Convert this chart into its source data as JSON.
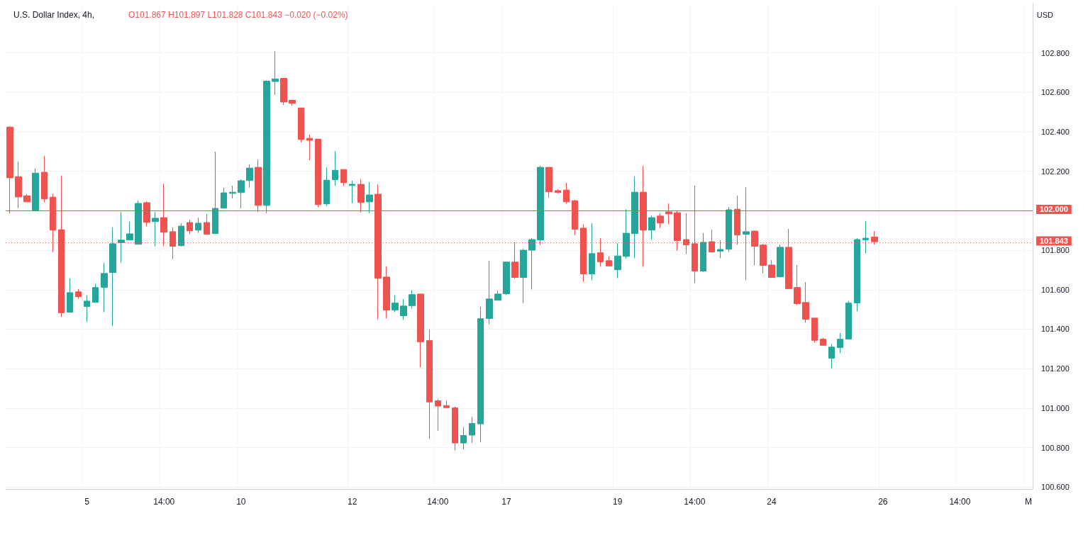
{
  "chart_data": {
    "type": "candlestick",
    "title": "U.S. Dollar Index, 4h,",
    "subtitle": "O101.867 H101.897 L101.828 C101.843 −0.020 (−0.02%)",
    "ylabel": "USD",
    "categories": [
      null,
      null,
      null,
      null,
      null,
      null,
      null,
      null,
      null,
      "5",
      null,
      null,
      null,
      null,
      null,
      null,
      null,
      null,
      "14:00",
      null,
      null,
      null,
      null,
      null,
      null,
      null,
      null,
      "10",
      null,
      null,
      null,
      null,
      null,
      null,
      null,
      null,
      null,
      null,
      null,
      null,
      "12",
      null,
      null,
      null,
      null,
      null,
      null,
      null,
      null,
      null,
      "14:00",
      null,
      null,
      null,
      null,
      null,
      null,
      null,
      "17",
      null,
      null,
      null,
      null,
      null,
      null,
      null,
      null,
      null,
      null,
      null,
      null,
      "19",
      null,
      null,
      null,
      null,
      null,
      null,
      null,
      null,
      "14:00",
      null,
      null,
      null,
      null,
      null,
      null,
      null,
      null,
      "24",
      null,
      null,
      null,
      null,
      null,
      null,
      null,
      null,
      null,
      null,
      null,
      null,
      "26",
      null,
      null,
      null,
      null,
      null,
      null,
      null,
      null,
      "14:00",
      null,
      null,
      null,
      null,
      null,
      null,
      null,
      "M"
    ],
    "ohlc": [
      [
        102.424,
        102.427,
        101.986,
        102.167
      ],
      [
        102.173,
        102.249,
        102.013,
        102.07
      ],
      [
        102.076,
        102.084,
        102.045,
        102.045
      ],
      [
        102.001,
        102.213,
        102.001,
        102.191
      ],
      [
        102.195,
        102.277,
        102.042,
        102.06
      ],
      [
        102.069,
        102.087,
        101.791,
        101.902
      ],
      [
        101.904,
        102.177,
        101.461,
        101.483
      ],
      [
        101.486,
        101.657,
        101.483,
        101.585
      ],
      [
        101.589,
        101.603,
        101.554,
        101.565
      ],
      [
        101.515,
        101.571,
        101.436,
        101.542
      ],
      [
        101.536,
        101.63,
        101.536,
        101.611
      ],
      [
        101.612,
        101.736,
        101.486,
        101.682
      ],
      [
        101.687,
        101.915,
        101.415,
        101.833
      ],
      [
        101.838,
        101.994,
        101.737,
        101.851
      ],
      [
        101.852,
        101.944,
        101.852,
        101.883
      ],
      [
        101.83,
        102.051,
        101.83,
        102.037
      ],
      [
        102.041,
        102.048,
        101.92,
        101.941
      ],
      [
        101.945,
        101.994,
        101.82,
        101.962
      ],
      [
        101.965,
        102.137,
        101.82,
        101.891
      ],
      [
        101.894,
        101.915,
        101.755,
        101.82
      ],
      [
        101.823,
        101.937,
        101.82,
        101.922
      ],
      [
        101.94,
        101.955,
        101.881,
        101.898
      ],
      [
        101.902,
        101.965,
        101.888,
        101.937
      ],
      [
        101.94,
        101.983,
        101.881,
        101.881
      ],
      [
        101.884,
        102.299,
        101.884,
        102.012
      ],
      [
        102.013,
        102.116,
        102.01,
        102.091
      ],
      [
        102.088,
        102.127,
        102.063,
        102.094
      ],
      [
        102.092,
        102.159,
        102.013,
        102.152
      ],
      [
        102.153,
        102.234,
        102.117,
        102.216
      ],
      [
        102.22,
        102.259,
        101.995,
        102.027
      ],
      [
        102.027,
        102.661,
        101.988,
        102.657
      ],
      [
        102.655,
        102.808,
        102.587,
        102.668
      ],
      [
        102.671,
        102.671,
        102.536,
        102.551
      ],
      [
        102.56,
        102.564,
        102.533,
        102.544
      ],
      [
        102.521,
        102.521,
        102.346,
        102.361
      ],
      [
        102.367,
        102.385,
        102.257,
        102.357
      ],
      [
        102.363,
        102.363,
        102.017,
        102.031
      ],
      [
        102.035,
        102.22,
        102.024,
        102.155
      ],
      [
        102.157,
        102.302,
        102.127,
        102.205
      ],
      [
        102.209,
        102.209,
        102.124,
        102.142
      ],
      [
        102.128,
        102.152,
        102.038,
        102.134
      ],
      [
        102.134,
        102.159,
        101.992,
        102.042
      ],
      [
        102.045,
        102.145,
        101.988,
        102.08
      ],
      [
        102.084,
        102.134,
        101.45,
        101.658
      ],
      [
        101.664,
        101.718,
        101.454,
        101.497
      ],
      [
        101.497,
        101.571,
        101.486,
        101.532
      ],
      [
        101.468,
        101.553,
        101.447,
        101.517
      ],
      [
        101.519,
        101.596,
        101.504,
        101.575
      ],
      [
        101.578,
        101.578,
        101.207,
        101.336
      ],
      [
        101.342,
        101.399,
        100.845,
        101.031
      ],
      [
        101.037,
        101.045,
        100.884,
        101.01
      ],
      [
        101.013,
        101.038,
        100.999,
        101.002
      ],
      [
        101.001,
        101.008,
        100.787,
        100.823
      ],
      [
        100.823,
        100.904,
        100.791,
        100.861
      ],
      [
        100.863,
        100.955,
        100.823,
        100.922
      ],
      [
        100.92,
        101.514,
        100.827,
        101.453
      ],
      [
        101.454,
        101.747,
        101.425,
        101.553
      ],
      [
        101.547,
        101.596,
        101.547,
        101.578
      ],
      [
        101.579,
        101.74,
        101.572,
        101.74
      ],
      [
        101.74,
        101.84,
        101.655,
        101.662
      ],
      [
        101.662,
        101.808,
        101.533,
        101.8
      ],
      [
        101.8,
        101.861,
        101.601,
        101.854
      ],
      [
        101.852,
        102.229,
        101.827,
        102.22
      ],
      [
        102.22,
        102.22,
        102.067,
        102.096
      ],
      [
        102.102,
        102.109,
        102.088,
        102.092
      ],
      [
        102.105,
        102.141,
        102.035,
        102.045
      ],
      [
        102.051,
        102.055,
        101.877,
        101.906
      ],
      [
        101.912,
        101.93,
        101.64,
        101.68
      ],
      [
        101.68,
        101.937,
        101.648,
        101.783
      ],
      [
        101.787,
        101.861,
        101.716,
        101.741
      ],
      [
        101.747,
        101.769,
        101.72,
        101.72
      ],
      [
        101.701,
        101.836,
        101.658,
        101.771
      ],
      [
        101.769,
        102.008,
        101.759,
        101.886
      ],
      [
        101.884,
        102.173,
        101.759,
        102.094
      ],
      [
        102.094,
        102.227,
        101.716,
        101.902
      ],
      [
        101.902,
        101.976,
        101.855,
        101.965
      ],
      [
        101.973,
        101.987,
        101.913,
        101.938
      ],
      [
        101.994,
        102.037,
        101.931,
        101.984
      ],
      [
        101.99,
        101.998,
        101.797,
        101.848
      ],
      [
        101.854,
        101.987,
        101.78,
        101.827
      ],
      [
        101.833,
        102.127,
        101.633,
        101.694
      ],
      [
        101.694,
        101.887,
        101.69,
        101.84
      ],
      [
        101.843,
        101.904,
        101.787,
        101.791
      ],
      [
        101.795,
        101.851,
        101.759,
        101.804
      ],
      [
        101.805,
        102.019,
        101.791,
        102.005
      ],
      [
        102.008,
        102.076,
        101.827,
        101.877
      ],
      [
        101.881,
        102.119,
        101.648,
        101.894
      ],
      [
        101.897,
        101.897,
        101.723,
        101.82
      ],
      [
        101.826,
        101.833,
        101.683,
        101.723
      ],
      [
        101.725,
        101.75,
        101.662,
        101.662
      ],
      [
        101.665,
        101.829,
        101.662,
        101.815
      ],
      [
        101.815,
        101.908,
        101.605,
        101.605
      ],
      [
        101.611,
        101.725,
        101.522,
        101.529
      ],
      [
        101.535,
        101.639,
        101.433,
        101.45
      ],
      [
        101.456,
        101.456,
        101.332,
        101.343
      ],
      [
        101.349,
        101.356,
        101.318,
        101.318
      ],
      [
        101.253,
        101.324,
        101.2,
        101.309
      ],
      [
        101.307,
        101.381,
        101.278,
        101.349
      ],
      [
        101.35,
        101.542,
        101.35,
        101.532
      ],
      [
        101.533,
        101.861,
        101.49,
        101.854
      ],
      [
        101.853,
        101.947,
        101.784,
        101.861
      ],
      [
        101.867,
        101.897,
        101.828,
        101.843
      ],
      null,
      null,
      null,
      null,
      null,
      null,
      null,
      null,
      null,
      null,
      null,
      null,
      null,
      null,
      null,
      null,
      null,
      null
    ],
    "colors": [
      "#ef5350",
      "#ef5350",
      "#ef5350",
      "#26a69a",
      "#ef5350",
      "#ef5350",
      "#ef5350",
      "#26a69a",
      "#ef5350",
      "#26a69a",
      "#26a69a",
      "#26a69a",
      "#26a69a",
      "#26a69a",
      "#26a69a",
      "#26a69a",
      "#ef5350",
      "#26a69a",
      "#ef5350",
      "#ef5350",
      "#26a69a",
      "#ef5350",
      "#26a69a",
      "#ef5350",
      "#26a69a",
      "#26a69a",
      "#26a69a",
      "#26a69a",
      "#26a69a",
      "#ef5350",
      "#26a69a",
      "#26a69a",
      "#ef5350",
      "#ef5350",
      "#ef5350",
      "#ef5350",
      "#ef5350",
      "#26a69a",
      "#26a69a",
      "#ef5350",
      "#26a69a",
      "#ef5350",
      "#26a69a",
      "#ef5350",
      "#ef5350",
      "#26a69a",
      "#26a69a",
      "#26a69a",
      "#ef5350",
      "#ef5350",
      "#ef5350",
      "#ef5350",
      "#ef5350",
      "#26a69a",
      "#26a69a",
      "#26a69a",
      "#26a69a",
      "#26a69a",
      "#26a69a",
      "#ef5350",
      "#26a69a",
      "#26a69a",
      "#26a69a",
      "#ef5350",
      "#ef5350",
      "#ef5350",
      "#ef5350",
      "#ef5350",
      "#26a69a",
      "#ef5350",
      "#ef5350",
      "#26a69a",
      "#26a69a",
      "#26a69a",
      "#ef5350",
      "#26a69a",
      "#ef5350",
      "#ef5350",
      "#ef5350",
      "#ef5350",
      "#ef5350",
      "#26a69a",
      "#ef5350",
      "#26a69a",
      "#26a69a",
      "#ef5350",
      "#26a69a",
      "#ef5350",
      "#ef5350",
      "#ef5350",
      "#26a69a",
      "#ef5350",
      "#ef5350",
      "#ef5350",
      "#ef5350",
      "#ef5350",
      "#26a69a",
      "#26a69a",
      "#26a69a",
      "#26a69a",
      "#26a69a",
      "#ef5350",
      null,
      null,
      null,
      null,
      null,
      null,
      null,
      null,
      null,
      null,
      null,
      null,
      null,
      null,
      null,
      null,
      null,
      null
    ],
    "ylim": [
      100.59,
      103.05
    ],
    "yticks": [
      {
        "value": 100.6,
        "label": "100.600"
      },
      {
        "value": 100.8,
        "label": "100.800"
      },
      {
        "value": 101.0,
        "label": "101.000"
      },
      {
        "value": 101.2,
        "label": "101.200"
      },
      {
        "value": 101.4,
        "label": "101.400"
      },
      {
        "value": 101.6,
        "label": "101.600"
      },
      {
        "value": 101.8,
        "label": "101.800"
      },
      {
        "value": 102.0,
        "label": "102.000"
      },
      {
        "value": 102.2,
        "label": "102.200"
      },
      {
        "value": 102.4,
        "label": "102.400"
      },
      {
        "value": 102.6,
        "label": "102.600"
      },
      {
        "value": 102.8,
        "label": "102.800"
      }
    ],
    "ref_lines": [
      {
        "axis": "y",
        "value": 102.0,
        "label": "102.000",
        "color": "#ef5350",
        "line_style": "solid"
      },
      {
        "axis": "y",
        "value": 101.843,
        "label": "101.843",
        "color": "#ef5350",
        "line_style": "dotted"
      }
    ],
    "grid": true
  }
}
